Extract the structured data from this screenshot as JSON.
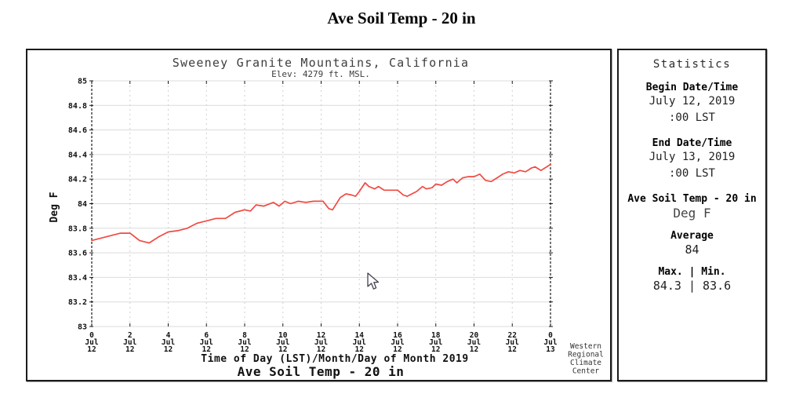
{
  "page": {
    "title": "Ave Soil Temp - 20 in"
  },
  "chart_data": {
    "type": "line",
    "title": "Sweeney Granite Mountains, California",
    "subtitle": "Elev: 4279 ft. MSL.",
    "ylabel": "Deg F",
    "xlabel": "Time of Day (LST)/Month/Day of Month 2019",
    "series_label": "Ave Soil Temp - 20 in",
    "year": "2019",
    "ylim": [
      83,
      85
    ],
    "xlim": [
      0,
      24
    ],
    "grid": true,
    "line_color": "#f04a42",
    "yticks": [
      "85",
      "84.8",
      "84.6",
      "84.4",
      "84.2",
      "84",
      "83.8",
      "83.6",
      "83.4",
      "83.2",
      "83"
    ],
    "xticks": [
      {
        "hour": "0",
        "month": "Jul",
        "day": "12"
      },
      {
        "hour": "2",
        "month": "Jul",
        "day": "12"
      },
      {
        "hour": "4",
        "month": "Jul",
        "day": "12"
      },
      {
        "hour": "6",
        "month": "Jul",
        "day": "12"
      },
      {
        "hour": "8",
        "month": "Jul",
        "day": "12"
      },
      {
        "hour": "10",
        "month": "Jul",
        "day": "12"
      },
      {
        "hour": "12",
        "month": "Jul",
        "day": "12"
      },
      {
        "hour": "14",
        "month": "Jul",
        "day": "12"
      },
      {
        "hour": "16",
        "month": "Jul",
        "day": "12"
      },
      {
        "hour": "18",
        "month": "Jul",
        "day": "12"
      },
      {
        "hour": "20",
        "month": "Jul",
        "day": "12"
      },
      {
        "hour": "22",
        "month": "Jul",
        "day": "12"
      },
      {
        "hour": "0",
        "month": "Jul",
        "day": "13"
      }
    ],
    "x": [
      0,
      0.5,
      1,
      1.5,
      2,
      2.5,
      3,
      3.5,
      4,
      4.5,
      5,
      5.5,
      6,
      6.5,
      7,
      7.5,
      8,
      8.3,
      8.6,
      9,
      9.5,
      9.8,
      10.1,
      10.4,
      10.8,
      11.2,
      11.6,
      12.1,
      12.4,
      12.6,
      13,
      13.3,
      13.6,
      13.8,
      14,
      14.3,
      14.5,
      14.8,
      15,
      15.3,
      16,
      16.3,
      16.5,
      17,
      17.3,
      17.5,
      17.8,
      18,
      18.3,
      18.6,
      18.9,
      19.1,
      19.4,
      19.7,
      20,
      20.3,
      20.6,
      20.9,
      21.2,
      21.5,
      21.8,
      22.1,
      22.4,
      22.7,
      23,
      23.2,
      23.5,
      23.8,
      24
    ],
    "y": [
      83.7,
      83.72,
      83.74,
      83.76,
      83.76,
      83.7,
      83.68,
      83.73,
      83.77,
      83.78,
      83.8,
      83.84,
      83.86,
      83.88,
      83.88,
      83.93,
      83.95,
      83.94,
      83.99,
      83.98,
      84.01,
      83.98,
      84.02,
      84.0,
      84.02,
      84.01,
      84.02,
      84.02,
      83.96,
      83.95,
      84.05,
      84.08,
      84.07,
      84.06,
      84.1,
      84.17,
      84.14,
      84.12,
      84.14,
      84.11,
      84.11,
      84.07,
      84.06,
      84.1,
      84.14,
      84.12,
      84.13,
      84.16,
      84.15,
      84.18,
      84.2,
      84.17,
      84.21,
      84.22,
      84.22,
      84.24,
      84.19,
      84.18,
      84.21,
      84.24,
      84.26,
      84.25,
      84.27,
      84.26,
      84.29,
      84.3,
      84.27,
      84.3,
      84.32
    ]
  },
  "watermark": {
    "lines": [
      "Western",
      "Regional",
      "Climate",
      "Center"
    ]
  },
  "stats": {
    "header": "Statistics",
    "groups": [
      {
        "label": "Begin Date/Time",
        "values": [
          "July 12, 2019",
          ":00 LST"
        ]
      },
      {
        "label": "End Date/Time",
        "values": [
          "July 13, 2019",
          ":00 LST"
        ]
      },
      {
        "label": "Ave Soil Temp - 20 in",
        "values": [
          "Deg F"
        ]
      },
      {
        "label": "Average",
        "values": [
          "84"
        ]
      },
      {
        "label": "Max. | Min.",
        "values": [
          "84.3 | 83.6"
        ]
      }
    ]
  }
}
